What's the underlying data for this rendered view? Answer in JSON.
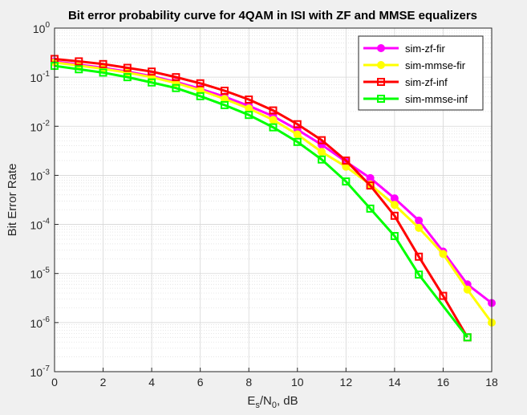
{
  "chart_data": {
    "type": "line",
    "title": "Bit error probability curve for 4QAM in ISI with ZF and MMSE equalizers",
    "xlabel_main": "E",
    "xlabel_sub1": "s",
    "xlabel_mid": "/N",
    "xlabel_sub2": "0",
    "xlabel_tail": ", dB",
    "ylabel": "Bit Error Rate",
    "xlim": [
      0,
      18
    ],
    "ylim": [
      1e-07,
      1
    ],
    "yscale": "log",
    "grid": true,
    "minor_grid": true,
    "legend_position": "top-right",
    "x_ticks": [
      0,
      2,
      4,
      6,
      8,
      10,
      12,
      14,
      16,
      18
    ],
    "x_tick_labels": [
      "0",
      "2",
      "4",
      "6",
      "8",
      "10",
      "12",
      "14",
      "16",
      "18"
    ],
    "y_ticks": [
      1e-07,
      1e-06,
      1e-05,
      0.0001,
      0.001,
      0.01,
      0.1,
      1
    ],
    "y_tick_base": "10",
    "y_tick_exps": [
      "-7",
      "-6",
      "-5",
      "-4",
      "-3",
      "-2",
      "-1",
      "0"
    ],
    "series": [
      {
        "name": "sim-zf-fir",
        "color": "#ff00ff",
        "marker": "dot",
        "x": [
          0,
          1,
          2,
          3,
          4,
          5,
          6,
          7,
          8,
          9,
          10,
          11,
          12,
          13,
          14,
          15,
          16,
          17,
          18
        ],
        "y": [
          0.21,
          0.18,
          0.155,
          0.13,
          0.105,
          0.08,
          0.058,
          0.04,
          0.026,
          0.016,
          0.0085,
          0.0042,
          0.0019,
          0.00088,
          0.00034,
          0.00012,
          2.8e-05,
          6e-06,
          2.5e-06
        ]
      },
      {
        "name": "sim-mmse-fir",
        "color": "#ffff00",
        "marker": "dot",
        "x": [
          0,
          1,
          2,
          3,
          4,
          5,
          6,
          7,
          8,
          9,
          10,
          11,
          12,
          13,
          14,
          15,
          16,
          17,
          18
        ],
        "y": [
          0.2,
          0.172,
          0.148,
          0.124,
          0.1,
          0.076,
          0.054,
          0.036,
          0.023,
          0.0135,
          0.0068,
          0.003,
          0.0015,
          0.00065,
          0.00025,
          8.5e-05,
          2.5e-05,
          4.7e-06,
          1e-06
        ]
      },
      {
        "name": "sim-zf-inf",
        "color": "#ff0000",
        "marker": "square",
        "x": [
          0,
          1,
          2,
          3,
          4,
          5,
          6,
          7,
          8,
          9,
          10,
          11,
          12,
          13,
          14,
          15,
          16,
          17
        ],
        "y": [
          0.235,
          0.21,
          0.185,
          0.155,
          0.13,
          0.1,
          0.075,
          0.053,
          0.035,
          0.021,
          0.011,
          0.0052,
          0.002,
          0.00062,
          0.00015,
          2.2e-05,
          3.5e-06,
          5e-07
        ]
      },
      {
        "name": "sim-mmse-inf",
        "color": "#00ff00",
        "marker": "square",
        "x": [
          0,
          1,
          2,
          3,
          4,
          5,
          6,
          7,
          8,
          9,
          10,
          11,
          12,
          13,
          14,
          15,
          17
        ],
        "y": [
          0.17,
          0.145,
          0.124,
          0.1,
          0.078,
          0.06,
          0.041,
          0.027,
          0.017,
          0.0095,
          0.0048,
          0.0021,
          0.00075,
          0.00021,
          5.8e-05,
          9.5e-06,
          5e-07
        ]
      }
    ]
  }
}
